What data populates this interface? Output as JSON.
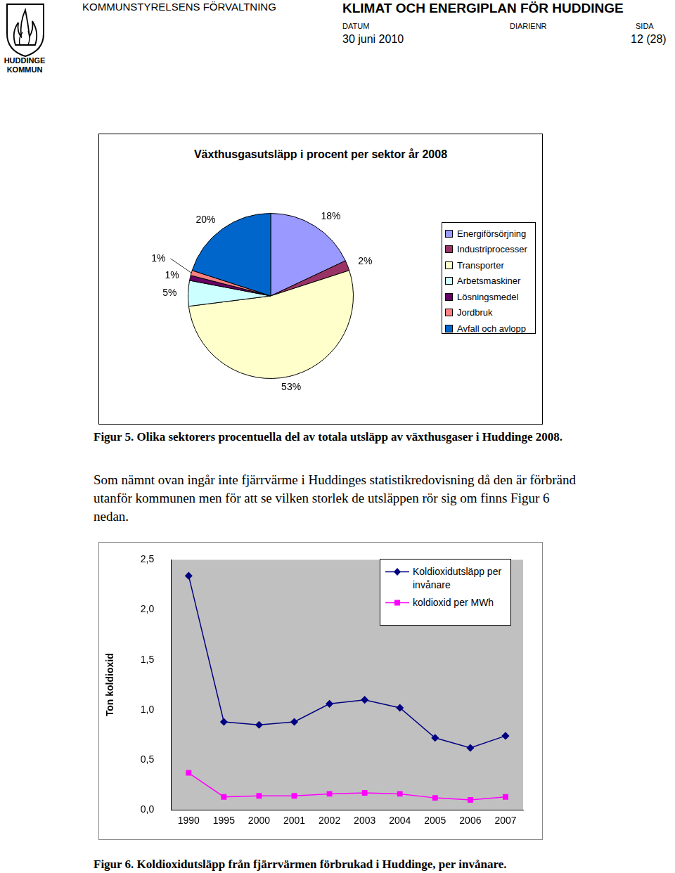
{
  "header": {
    "org": "KOMMUNSTYRELSENS FÖRVALTNING",
    "title": "KLIMAT OCH ENERGIPLAN FÖR HUDDINGE",
    "labels": [
      "DATUM",
      "DIARIENR",
      "SIDA"
    ],
    "date": "30 juni 2010",
    "page": "12 (28)",
    "logo_text": [
      "HUDDINGE",
      "KOMMUN"
    ]
  },
  "chart_data": [
    {
      "type": "pie",
      "title": "Växthusgasutsläpp i procent per sektor år 2008",
      "categories": [
        "Energiförsörjning",
        "Industriprocesser",
        "Transporter",
        "Arbetsmaskiner",
        "Lösningsmedel",
        "Jordbruk",
        "Avfall och avlopp"
      ],
      "values": [
        18,
        2,
        53,
        5,
        1,
        1,
        20
      ],
      "value_labels": [
        "18%",
        "2%",
        "53%",
        "5%",
        "1%",
        "1%",
        "20%"
      ],
      "colors": [
        "#9999ff",
        "#993366",
        "#ffffcc",
        "#ccffff",
        "#660066",
        "#ff8080",
        "#0066cc"
      ],
      "data_labels": true,
      "legend": "right"
    },
    {
      "type": "line",
      "y_label": "Ton koldioxid",
      "categories": [
        "1990",
        "1995",
        "2000",
        "2001",
        "2002",
        "2003",
        "2004",
        "2005",
        "2006",
        "2007"
      ],
      "series": [
        {
          "name": "Koldioxidutsläpp per invånare",
          "color": "#000080",
          "marker": "diamond",
          "values": [
            2.34,
            0.88,
            0.85,
            0.88,
            1.06,
            1.1,
            1.02,
            0.72,
            0.62,
            0.74
          ]
        },
        {
          "name": "koldioxid per MWh",
          "color": "#ff00ff",
          "marker": "square",
          "values": [
            0.37,
            0.13,
            0.14,
            0.14,
            0.16,
            0.17,
            0.16,
            0.12,
            0.1,
            0.13
          ]
        }
      ],
      "ylim": [
        0,
        2.5
      ],
      "yticks": [
        {
          "value": 0,
          "label": "0,0"
        },
        {
          "value": 0.5,
          "label": "0,5"
        },
        {
          "value": 1,
          "label": "1,0"
        },
        {
          "value": 1.5,
          "label": "1,5"
        },
        {
          "value": 2,
          "label": "2,0"
        },
        {
          "value": 2.5,
          "label": "2,5"
        }
      ],
      "grid": false,
      "legend": "top-right"
    }
  ],
  "captions": [
    "Figur 5. Olika sektorers procentuella del av totala utsläpp av växthusgaser i Huddinge 2008.",
    "Figur 6. Koldioxidutsläpp från fjärrvärmen förbrukad i Huddinge, per invånare."
  ],
  "paragraph": "Som nämnt ovan ingår inte fjärrvärme i Huddinges statistikredovisning då den är förbränd utanför kommunen men för att se vilken storlek de utsläppen rör sig om finns Figur 6 nedan."
}
